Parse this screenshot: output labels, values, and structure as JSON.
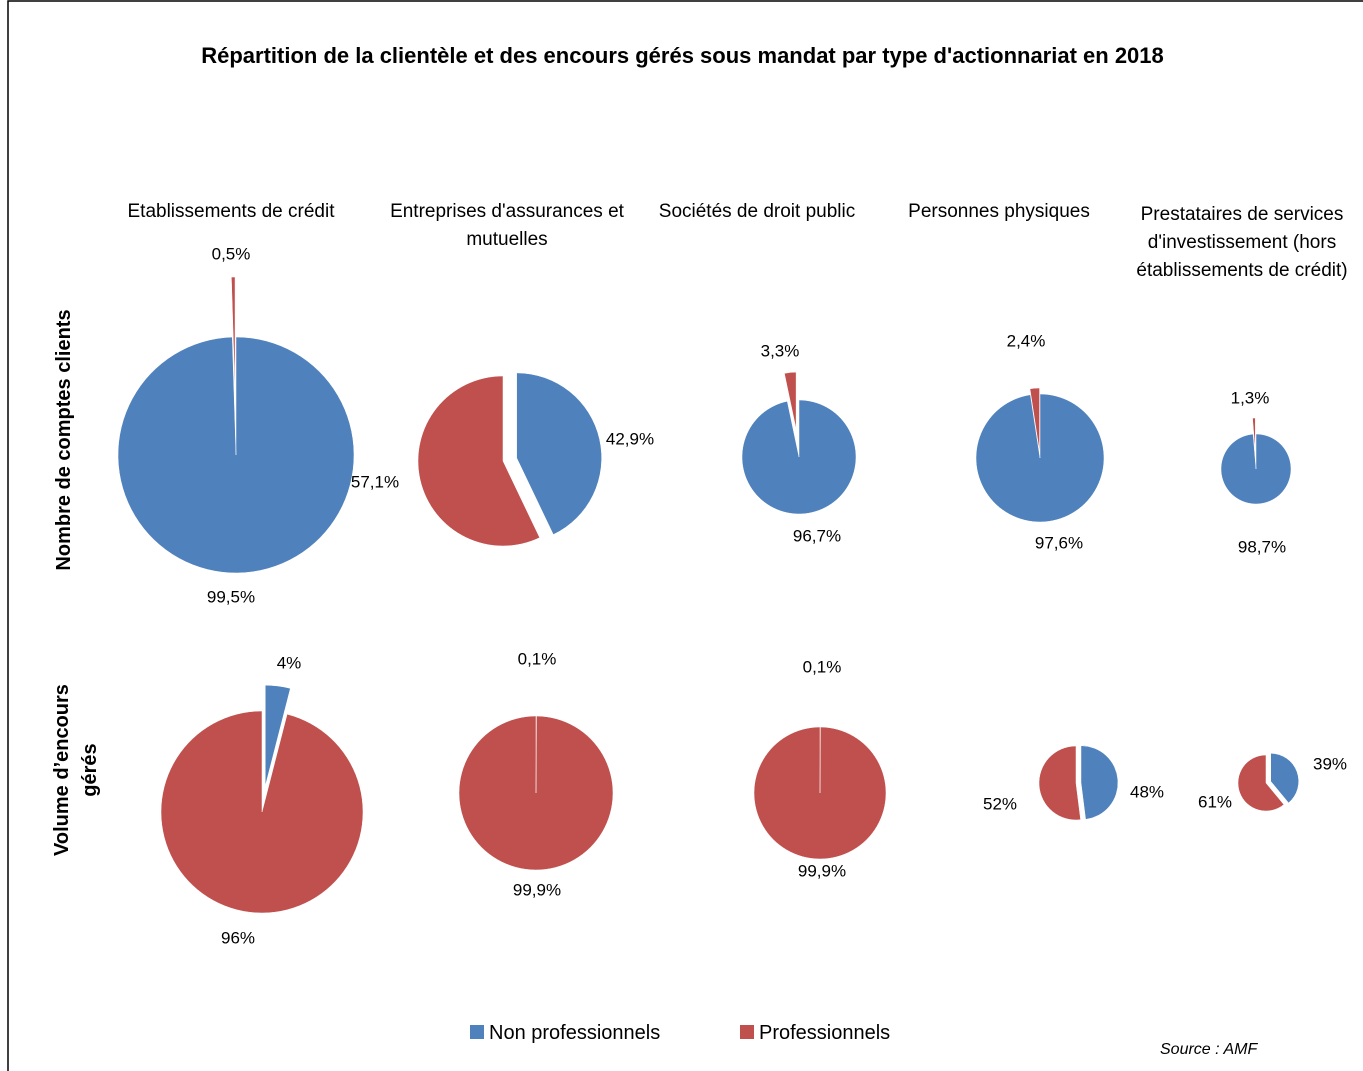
{
  "chart_data": {
    "type": "pie",
    "title": "Répartition de la clientèle et des encours gérés sous mandat par type d'actionnariat en 2018",
    "categories": [
      "Etablissements de crédit",
      "Entreprises d'assurances et mutuelles",
      "Sociétés de droit public",
      "Personnes physiques",
      "Prestataires de services d'investissement (hors établissements de crédit)"
    ],
    "rows": [
      "Nombre de comptes clients",
      "Volume d’encours gérés"
    ],
    "series": [
      {
        "name": "Non professionnels",
        "color": "#4f81bd"
      },
      {
        "name": "Professionnels",
        "color": "#c0504d"
      }
    ],
    "pies": [
      [
        {
          "values": [
            99.5,
            0.5
          ],
          "value_labels": [
            "99,5%",
            "0,5%"
          ]
        },
        {
          "values": [
            42.9,
            57.1
          ],
          "value_labels": [
            "42,9%",
            "57,1%"
          ]
        },
        {
          "values": [
            96.7,
            3.3
          ],
          "value_labels": [
            "96,7%",
            "3,3%"
          ]
        },
        {
          "values": [
            97.6,
            2.4
          ],
          "value_labels": [
            "97,6%",
            "2,4%"
          ]
        },
        {
          "values": [
            98.7,
            1.3
          ],
          "value_labels": [
            "98,7%",
            "1,3%"
          ]
        }
      ],
      [
        {
          "values": [
            4,
            96
          ],
          "value_labels": [
            "4%",
            "96%"
          ]
        },
        {
          "values": [
            0.1,
            99.9
          ],
          "value_labels": [
            "0,1%",
            "99,9%"
          ]
        },
        {
          "values": [
            0.1,
            99.9
          ],
          "value_labels": [
            "0,1%",
            "99,9%"
          ]
        },
        {
          "values": [
            48,
            52
          ],
          "value_labels": [
            "48%",
            "52%"
          ]
        },
        {
          "values": [
            39,
            61
          ],
          "value_labels": [
            "39%",
            "61%"
          ]
        }
      ]
    ],
    "source": "Source : AMF"
  }
}
